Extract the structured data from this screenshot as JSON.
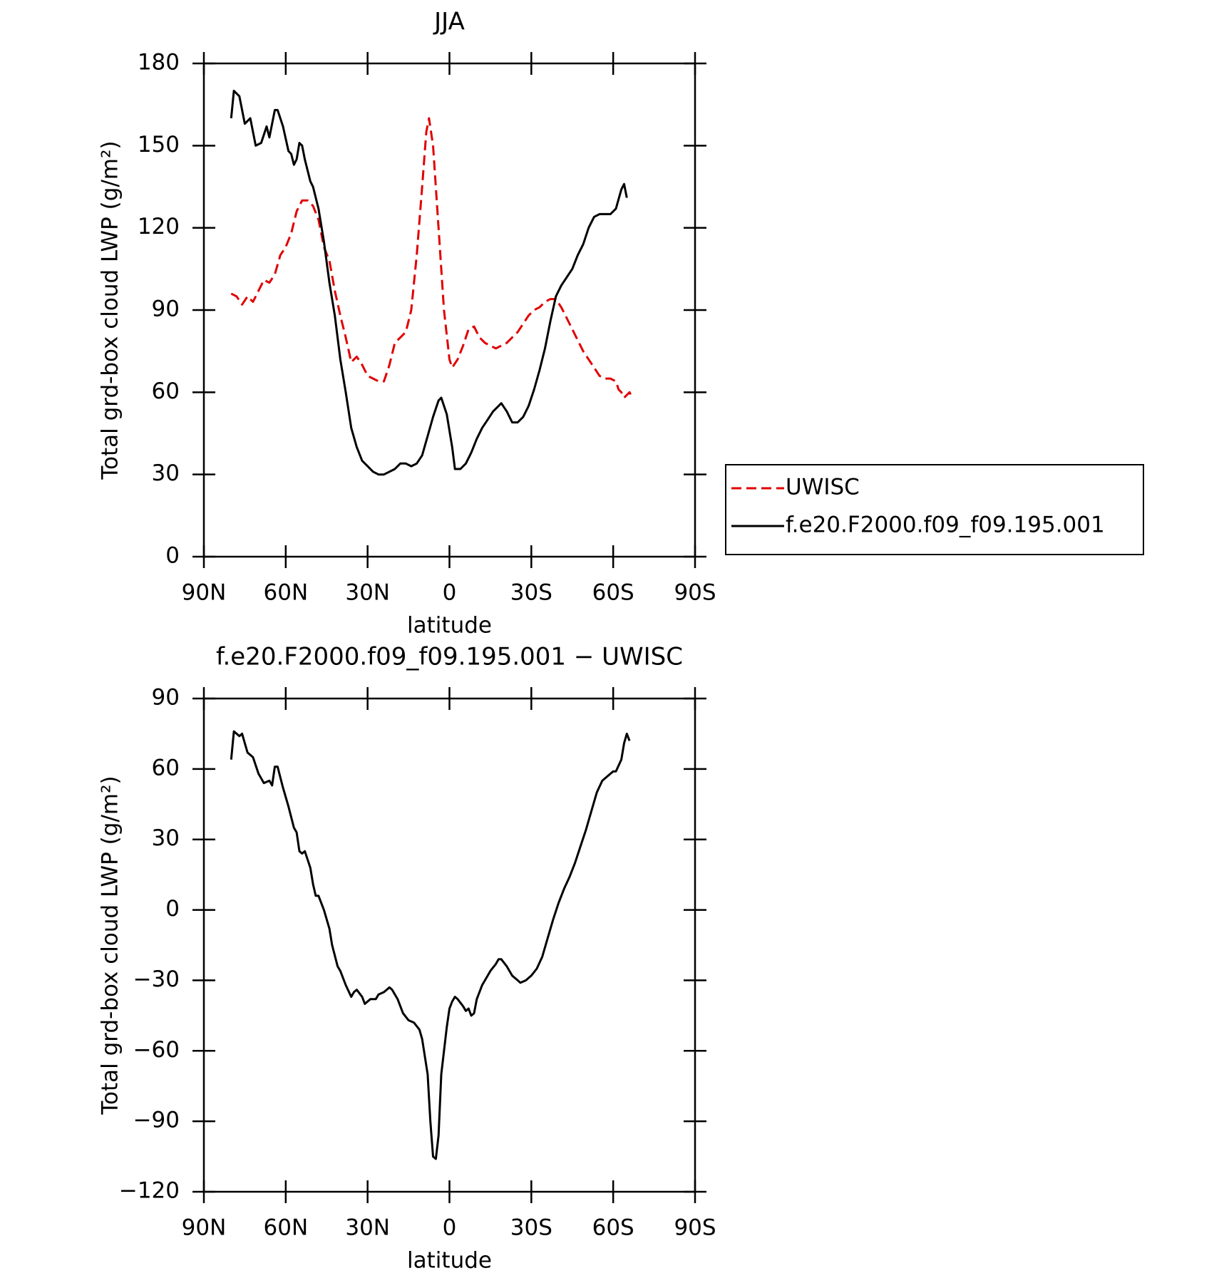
{
  "chart_data": [
    {
      "type": "line",
      "title": "JJA",
      "xlabel": "latitude",
      "ylabel": "Total grd-box cloud LWP (g/m²)",
      "xlim": [
        90,
        -90
      ],
      "xticks": [
        {
          "value": 90,
          "label": "90N"
        },
        {
          "value": 60,
          "label": "60N"
        },
        {
          "value": 30,
          "label": "30N"
        },
        0,
        {
          "value": -30,
          "label": "30S"
        },
        {
          "value": -60,
          "label": "60S"
        },
        {
          "value": -90,
          "label": "90S"
        }
      ],
      "ylim": [
        0,
        180
      ],
      "yticks": [
        0,
        30,
        60,
        90,
        120,
        150,
        180
      ],
      "legend": "right",
      "series": [
        {
          "name": "UWISC",
          "color": "#e00000",
          "dashed": true,
          "x": [
            80,
            78,
            76,
            74,
            72,
            70,
            68,
            66,
            64,
            62,
            60,
            58,
            56,
            54,
            52,
            50,
            48,
            46,
            44,
            42,
            40,
            38,
            36,
            34,
            32,
            30,
            28,
            26,
            24,
            22,
            20,
            18,
            16,
            14,
            12,
            10,
            8.5,
            7.5,
            6,
            4,
            2,
            0,
            -1,
            -3,
            -5,
            -7,
            -9,
            -11,
            -13,
            -15,
            -17,
            -19,
            -21,
            -23,
            -25,
            -27,
            -29,
            -31,
            -33,
            -35,
            -37,
            -39,
            -41,
            -43,
            -45,
            -47,
            -49,
            -51,
            -53,
            -55,
            -57,
            -59,
            -61,
            -62,
            -63,
            -64,
            -65,
            -66,
            -67
          ],
          "values": [
            96,
            95,
            92,
            95,
            93,
            97,
            101,
            100,
            103,
            110,
            113,
            118,
            126,
            130,
            130,
            128,
            123,
            113,
            108,
            97,
            88,
            80,
            71,
            73,
            70,
            66,
            65,
            64,
            64,
            70,
            78,
            80,
            82,
            90,
            110,
            135,
            155,
            160,
            150,
            120,
            90,
            72,
            69,
            72,
            77,
            83,
            84,
            80,
            78,
            77,
            76,
            77,
            78,
            80,
            82,
            85,
            88,
            90,
            91,
            93,
            94,
            94,
            91,
            87,
            83,
            79,
            75,
            72,
            69,
            66,
            65,
            65,
            64,
            61,
            60,
            58,
            59,
            60,
            58
          ]
        },
        {
          "name": "f.e20.F2000.f09_f09.195.001",
          "color": "#000000",
          "dashed": false,
          "x": [
            80,
            79,
            77,
            75,
            73,
            71,
            69,
            67,
            66,
            64,
            63,
            61,
            59,
            58,
            57,
            56,
            55,
            54,
            53,
            51,
            50,
            48,
            46,
            44,
            42,
            40,
            38,
            36,
            34,
            32,
            30,
            28,
            26,
            24,
            22,
            20,
            18,
            16,
            14,
            12,
            10,
            8,
            6,
            4,
            3,
            1,
            -1,
            -2,
            -4,
            -6,
            -8,
            -10,
            -12,
            -14,
            -16,
            -18,
            -19,
            -21,
            -23,
            -25,
            -27,
            -29,
            -31,
            -33,
            -35,
            -37,
            -39,
            -41,
            -43,
            -45,
            -47,
            -49,
            -51,
            -53,
            -55,
            -57,
            -59,
            -61,
            -63,
            -64,
            -65
          ],
          "values": [
            160,
            170,
            168,
            158,
            160,
            150,
            151,
            157,
            153,
            163,
            163,
            157,
            148,
            147,
            143,
            145,
            151,
            150,
            145,
            137,
            135,
            127,
            115,
            100,
            88,
            72,
            60,
            47,
            40,
            35,
            33,
            31,
            30,
            30,
            31,
            32,
            34,
            34,
            33,
            34,
            37,
            44,
            51,
            57,
            58,
            52,
            40,
            32,
            32,
            34,
            38,
            43,
            47,
            50,
            53,
            55,
            56,
            53,
            49,
            49,
            51,
            55,
            61,
            68,
            76,
            86,
            95,
            99,
            102,
            105,
            110,
            114,
            120,
            124,
            125,
            125,
            125,
            127,
            134,
            136,
            131
          ]
        }
      ]
    },
    {
      "type": "line",
      "title": "f.e20.F2000.f09_f09.195.001 − UWISC",
      "xlabel": "latitude",
      "ylabel": "Total grd-box cloud LWP (g/m²)",
      "xlim": [
        90,
        -90
      ],
      "xticks": [
        {
          "value": 90,
          "label": "90N"
        },
        {
          "value": 60,
          "label": "60N"
        },
        {
          "value": 30,
          "label": "30N"
        },
        0,
        {
          "value": -30,
          "label": "30S"
        },
        {
          "value": -60,
          "label": "60S"
        },
        {
          "value": -90,
          "label": "90S"
        }
      ],
      "ylim": [
        -120,
        90
      ],
      "yticks": [
        {
          "value": -120,
          "label": "−120"
        },
        {
          "value": -90,
          "label": "−90"
        },
        {
          "value": -60,
          "label": "−60"
        },
        {
          "value": -30,
          "label": "−30"
        },
        0,
        30,
        60,
        90
      ],
      "series": [
        {
          "color": "#000000",
          "dashed": false,
          "x": [
            80,
            79,
            77,
            76,
            74,
            72,
            70,
            68,
            66,
            65,
            64,
            63,
            61,
            59,
            57,
            56,
            55,
            54,
            53,
            51,
            50,
            49,
            48,
            46,
            44,
            43,
            41,
            40,
            38,
            36,
            35,
            34,
            32,
            31,
            29,
            27,
            26,
            24,
            22,
            21,
            19,
            17,
            15,
            13,
            11,
            10,
            8,
            7,
            6,
            5,
            4,
            3,
            1,
            0,
            -1,
            -2,
            -3,
            -5,
            -6,
            -7,
            -8,
            -9,
            -10,
            -12,
            -13,
            -15,
            -17,
            -18,
            -19,
            -21,
            -23,
            -25,
            -26,
            -28,
            -30,
            -32,
            -34,
            -36,
            -38,
            -40,
            -42,
            -44,
            -46,
            -48,
            -50,
            -52,
            -54,
            -56,
            -58,
            -60,
            -61,
            -63,
            -64,
            -65,
            -66
          ],
          "values": [
            64,
            76,
            74,
            75,
            67,
            65,
            58,
            54,
            55,
            53,
            61,
            61,
            52,
            44,
            35,
            33,
            25,
            24,
            25,
            18,
            11,
            6,
            6,
            0,
            -8,
            -15,
            -24,
            -26,
            -32,
            -37,
            -35,
            -34,
            -37,
            -40,
            -38,
            -38,
            -36,
            -35,
            -33,
            -34,
            -38,
            -44,
            -47,
            -48,
            -51,
            -55,
            -70,
            -90,
            -105,
            -106,
            -96,
            -70,
            -50,
            -42,
            -39,
            -37,
            -38,
            -41,
            -43,
            -42,
            -45,
            -44,
            -38,
            -32,
            -30,
            -26,
            -23,
            -21,
            -21,
            -24,
            -28,
            -30,
            -31,
            -30,
            -28,
            -25,
            -20,
            -12,
            -4,
            3,
            9,
            14,
            20,
            27,
            34,
            42,
            50,
            55,
            57,
            59,
            59,
            64,
            71,
            75,
            72
          ]
        }
      ]
    }
  ]
}
